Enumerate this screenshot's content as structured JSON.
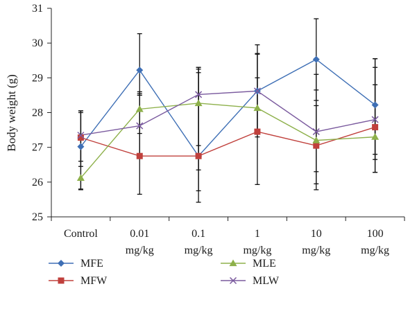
{
  "chart_data": {
    "type": "line",
    "ylabel": "Body weight (g)",
    "ylim": [
      25,
      31
    ],
    "yticks": [
      25,
      26,
      27,
      28,
      29,
      30,
      31
    ],
    "grid": false,
    "legend_position": "bottom",
    "categories": [
      [
        "Control"
      ],
      [
        "0.01",
        "mg/kg"
      ],
      [
        "0.1",
        "mg/kg"
      ],
      [
        "1",
        "mg/kg"
      ],
      [
        "10",
        "mg/kg"
      ],
      [
        "100",
        "mg/kg"
      ]
    ],
    "series": [
      {
        "name": "MFE",
        "color": "#3e6fb5",
        "marker": "diamond",
        "values": [
          27.02,
          29.22,
          26.75,
          28.62,
          29.53,
          28.22
        ],
        "error_low": [
          25.8,
          28.5,
          25.75,
          27.45,
          28.35,
          26.8
        ],
        "error_high": [
          28.05,
          30.27,
          29.15,
          29.95,
          30.7,
          29.55
        ]
      },
      {
        "name": "MFW",
        "color": "#c0403c",
        "marker": "square",
        "values": [
          27.28,
          26.75,
          26.75,
          27.45,
          27.05,
          27.58
        ],
        "error_low": [
          26.45,
          25.65,
          25.42,
          25.93,
          25.95,
          26.28
        ],
        "error_high": [
          28.05,
          28.55,
          29.25,
          29.0,
          28.2,
          29.55
        ]
      },
      {
        "name": "MLE",
        "color": "#8db04a",
        "marker": "triangle",
        "values": [
          26.12,
          28.1,
          28.27,
          28.13,
          27.2,
          27.3
        ],
        "error_low": [
          25.78,
          27.4,
          26.35,
          27.3,
          25.78,
          26.28
        ],
        "error_high": [
          27.0,
          28.6,
          29.3,
          29.7,
          28.65,
          28.8
        ]
      },
      {
        "name": "MLW",
        "color": "#7a5a9e",
        "marker": "x",
        "values": [
          27.35,
          27.62,
          28.52,
          28.62,
          27.45,
          27.8
        ],
        "error_low": [
          26.6,
          26.7,
          27.05,
          27.5,
          26.3,
          26.65
        ],
        "error_high": [
          28.0,
          28.5,
          29.3,
          29.68,
          29.1,
          29.3
        ]
      }
    ]
  }
}
